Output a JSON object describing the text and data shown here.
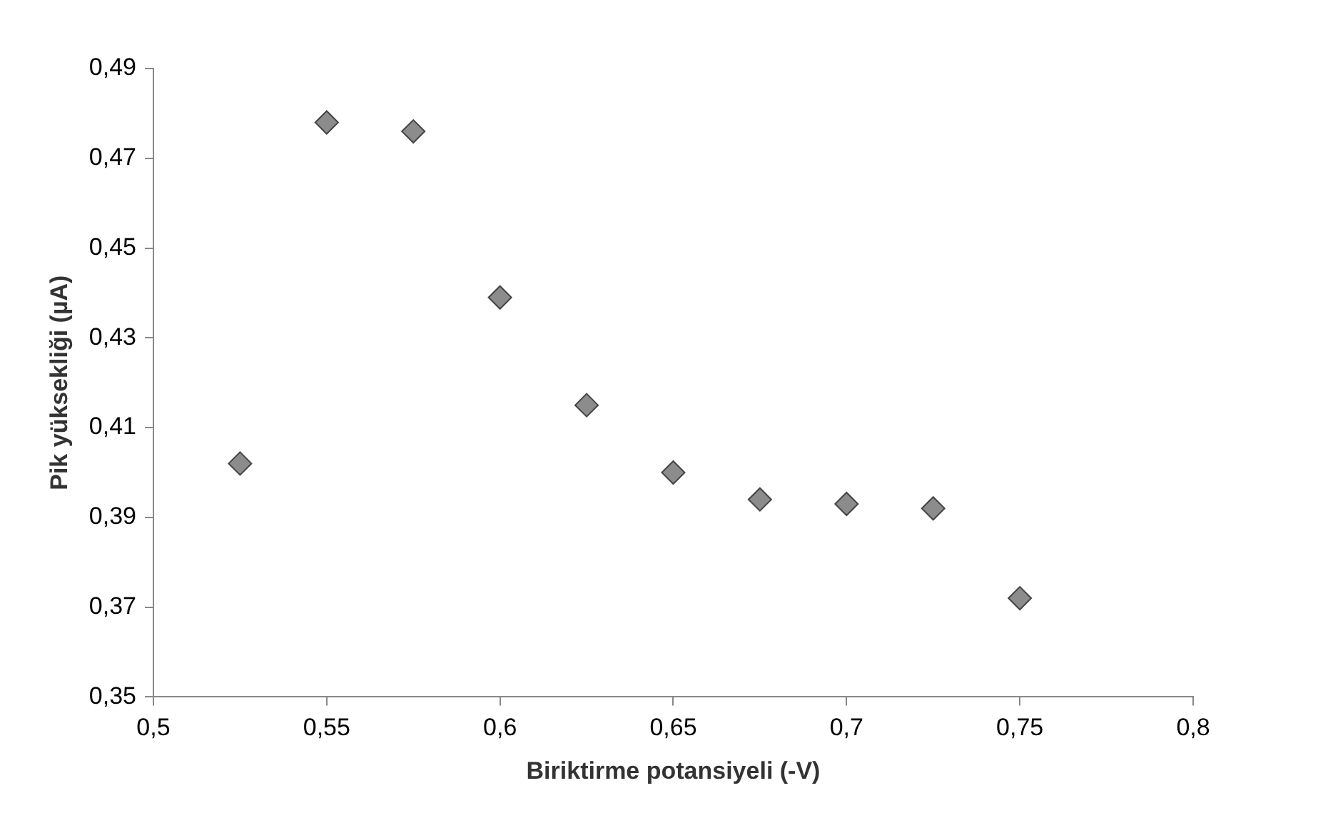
{
  "chart_data": {
    "type": "scatter",
    "xlabel": "Biriktirme potansiyeli (-V)",
    "ylabel": "Pik yüksekliği (µA)",
    "x": [
      0.525,
      0.55,
      0.575,
      0.6,
      0.625,
      0.65,
      0.675,
      0.7,
      0.725,
      0.75
    ],
    "series": [
      {
        "color": "#8c8c8c",
        "values": [
          0.402,
          0.478,
          0.476,
          0.439,
          0.415,
          0.4,
          0.394,
          0.393,
          0.392,
          0.372
        ]
      }
    ],
    "xlim": [
      0.5,
      0.8
    ],
    "xticks": [
      {
        "value": 0.5,
        "label": "0,5"
      },
      {
        "value": 0.55,
        "label": "0,55"
      },
      {
        "value": 0.6,
        "label": "0,6"
      },
      {
        "value": 0.65,
        "label": "0,65"
      },
      {
        "value": 0.7,
        "label": "0,7"
      },
      {
        "value": 0.75,
        "label": "0,75"
      },
      {
        "value": 0.8,
        "label": "0,8"
      }
    ],
    "ylim": [
      0.35,
      0.49
    ],
    "yticks": [
      {
        "value": 0.35,
        "label": "0,35"
      },
      {
        "value": 0.37,
        "label": "0,37"
      },
      {
        "value": 0.39,
        "label": "0,39"
      },
      {
        "value": 0.41,
        "label": "0,41"
      },
      {
        "value": 0.43,
        "label": "0,43"
      },
      {
        "value": 0.45,
        "label": "0,45"
      },
      {
        "value": 0.47,
        "label": "0,47"
      },
      {
        "value": 0.49,
        "label": "0,49"
      }
    ],
    "grid": false,
    "legend": false,
    "marker": "diamond"
  }
}
